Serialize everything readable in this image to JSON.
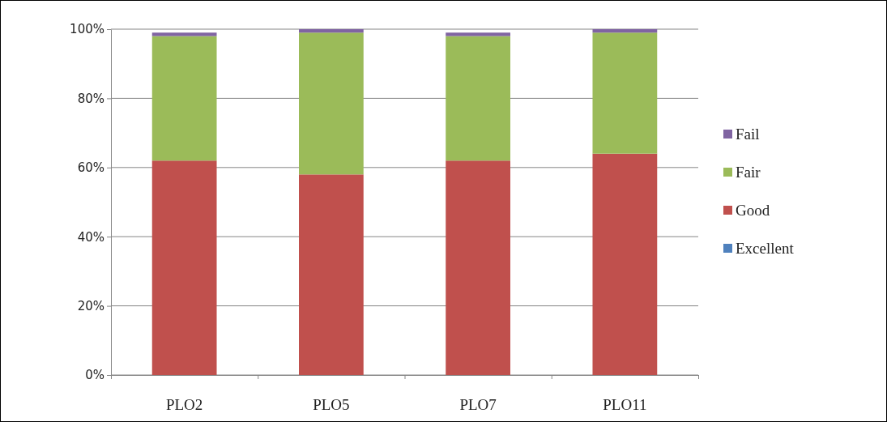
{
  "chart_data": {
    "type": "bar",
    "stacked": true,
    "categories": [
      "PLO2",
      "PLO5",
      "PLO7",
      "PLO11"
    ],
    "series": [
      {
        "name": "Excellent",
        "color": "#4f81bd",
        "values": [
          0,
          0,
          0,
          0
        ]
      },
      {
        "name": "Good",
        "color": "#c0504d",
        "values": [
          62,
          58,
          62,
          64
        ]
      },
      {
        "name": "Fair",
        "color": "#9bbb59",
        "values": [
          36,
          41,
          36,
          35
        ]
      },
      {
        "name": "Fail",
        "color": "#8064a2",
        "values": [
          1,
          1,
          1,
          1
        ]
      }
    ],
    "ylim": [
      0,
      100
    ],
    "yticks": [
      {
        "value": 0,
        "label": "0%"
      },
      {
        "value": 20,
        "label": "20%"
      },
      {
        "value": 40,
        "label": "40%"
      },
      {
        "value": 60,
        "label": "60%"
      },
      {
        "value": 80,
        "label": "80%"
      },
      {
        "value": 100,
        "label": "100%"
      }
    ],
    "grid": "y",
    "legend": "right"
  }
}
